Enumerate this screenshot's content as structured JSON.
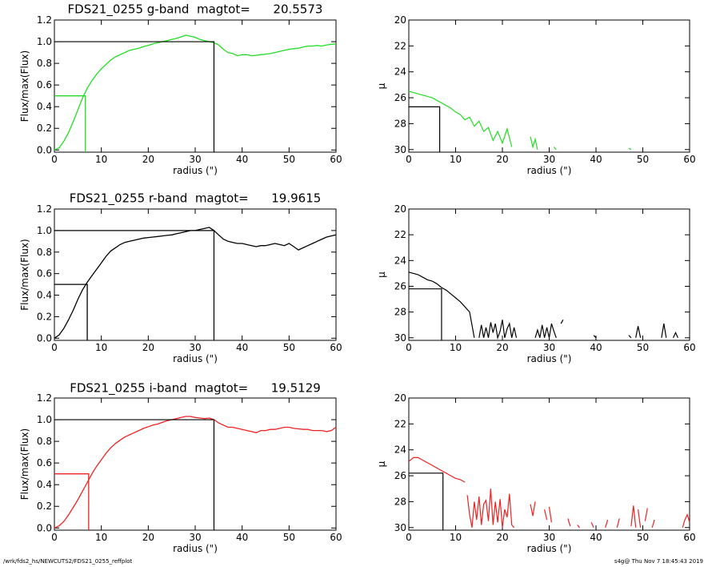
{
  "footer": {
    "left": "/wrk/fds2_hs/NEWCUTS2/FDS21_0255_reffplot",
    "right": "s4g@  Thu Nov  7 18:45:43 2019"
  },
  "chart_data": [
    {
      "type": "line",
      "band": "g",
      "title": "FDS21_0255 g-band  magtot=      20.5573",
      "xlabel": "radius (\")",
      "ylabel": "Flux/max(Flux)",
      "xlim": [
        0,
        60
      ],
      "ylim": [
        -0.02,
        1.2
      ],
      "xticks": [
        "0",
        "10",
        "20",
        "30",
        "40",
        "50",
        "60"
      ],
      "yticks": [
        "0.0",
        "0.2",
        "0.4",
        "0.6",
        "0.8",
        "1.0",
        "1.2"
      ],
      "color": "#22dd22",
      "series": [
        {
          "x": [
            0,
            1,
            2,
            3,
            4,
            5,
            6,
            7,
            8,
            9,
            10,
            11,
            12,
            13,
            14,
            15,
            16,
            17,
            18,
            19,
            20,
            21,
            22,
            23,
            24,
            25,
            26,
            27,
            28,
            29,
            30,
            31,
            32,
            33,
            34,
            35,
            36,
            37,
            38,
            39,
            40,
            41,
            42,
            43,
            44,
            45,
            46,
            47,
            48,
            49,
            50,
            51,
            52,
            53,
            54,
            55,
            56,
            57,
            58,
            59,
            60
          ],
          "y": [
            0,
            0.02,
            0.08,
            0.16,
            0.26,
            0.37,
            0.48,
            0.57,
            0.64,
            0.7,
            0.75,
            0.79,
            0.83,
            0.86,
            0.88,
            0.9,
            0.92,
            0.93,
            0.94,
            0.955,
            0.965,
            0.98,
            0.99,
            1.0,
            1.01,
            1.02,
            1.03,
            1.045,
            1.06,
            1.05,
            1.04,
            1.02,
            1.01,
            1.0,
            0.99,
            0.97,
            0.93,
            0.9,
            0.89,
            0.87,
            0.88,
            0.88,
            0.87,
            0.875,
            0.88,
            0.885,
            0.89,
            0.9,
            0.91,
            0.92,
            0.93,
            0.935,
            0.94,
            0.95,
            0.96,
            0.96,
            0.965,
            0.96,
            0.97,
            0.975,
            0.98
          ]
        }
      ],
      "half_radius": 6.6,
      "total_radius": 34,
      "mu": {
        "ylabel": "μ",
        "xlim": [
          0,
          60
        ],
        "ylim": [
          30.2,
          20
        ],
        "yticks": [
          "20",
          "22",
          "24",
          "26",
          "28",
          "30"
        ],
        "mu_eff": 26.7,
        "segments": [
          {
            "x": [
              0,
              1,
              2,
              3,
              4,
              5,
              6,
              7,
              8,
              9,
              10,
              11,
              12,
              13,
              14,
              15,
              16,
              17,
              18,
              19,
              20,
              21,
              22
            ],
            "y": [
              25.5,
              25.6,
              25.7,
              25.8,
              25.9,
              26.0,
              26.2,
              26.4,
              26.6,
              26.8,
              27.1,
              27.3,
              27.7,
              27.5,
              28.2,
              27.8,
              28.6,
              28.3,
              29.3,
              28.6,
              29.5,
              28.4,
              29.8
            ]
          },
          {
            "x": [
              26,
              26.5,
              27,
              27.5
            ],
            "y": [
              29.0,
              29.8,
              29.2,
              30.0
            ]
          },
          {
            "x": [
              31,
              31.5
            ],
            "y": [
              29.8,
              30.0
            ]
          },
          {
            "x": [
              47,
              47.5
            ],
            "y": [
              29.9,
              30.0
            ]
          }
        ]
      }
    },
    {
      "type": "line",
      "band": "r",
      "title": "FDS21_0255 r-band  magtot=      19.9615",
      "xlabel": "radius (\")",
      "ylabel": "Flux/max(Flux)",
      "xlim": [
        0,
        60
      ],
      "ylim": [
        -0.02,
        1.2
      ],
      "xticks": [
        "0",
        "10",
        "20",
        "30",
        "40",
        "50",
        "60"
      ],
      "yticks": [
        "0.0",
        "0.2",
        "0.4",
        "0.6",
        "0.8",
        "1.0",
        "1.2"
      ],
      "color": "#000000",
      "series": [
        {
          "x": [
            0,
            1,
            2,
            3,
            4,
            5,
            6,
            7,
            8,
            9,
            10,
            11,
            12,
            13,
            14,
            15,
            16,
            17,
            18,
            19,
            20,
            21,
            22,
            23,
            24,
            25,
            26,
            27,
            28,
            29,
            30,
            31,
            32,
            33,
            34,
            35,
            36,
            37,
            38,
            39,
            40,
            41,
            42,
            43,
            44,
            45,
            46,
            47,
            48,
            49,
            50,
            51,
            52,
            53,
            54,
            55,
            56,
            57,
            58,
            59,
            60
          ],
          "y": [
            0,
            0.03,
            0.09,
            0.17,
            0.26,
            0.36,
            0.45,
            0.52,
            0.58,
            0.64,
            0.7,
            0.76,
            0.81,
            0.84,
            0.87,
            0.89,
            0.9,
            0.91,
            0.92,
            0.93,
            0.935,
            0.94,
            0.945,
            0.95,
            0.955,
            0.96,
            0.97,
            0.98,
            0.99,
            1.0,
            1.0,
            1.01,
            1.02,
            1.03,
            1.0,
            0.96,
            0.92,
            0.9,
            0.89,
            0.88,
            0.88,
            0.87,
            0.86,
            0.85,
            0.86,
            0.86,
            0.87,
            0.88,
            0.87,
            0.86,
            0.88,
            0.85,
            0.82,
            0.84,
            0.86,
            0.88,
            0.9,
            0.92,
            0.94,
            0.95,
            0.96
          ]
        }
      ],
      "half_radius": 7,
      "total_radius": 34,
      "mu": {
        "ylabel": "μ",
        "xlim": [
          0,
          60
        ],
        "ylim": [
          30.2,
          20
        ],
        "yticks": [
          "20",
          "22",
          "24",
          "26",
          "28",
          "30"
        ],
        "mu_eff": 26.2,
        "segments": [
          {
            "x": [
              0,
              1,
              2,
              3,
              4,
              5,
              6,
              7,
              8,
              9,
              10,
              11,
              12,
              13,
              14
            ],
            "y": [
              24.9,
              25.0,
              25.1,
              25.3,
              25.5,
              25.6,
              25.8,
              26.1,
              26.3,
              26.6,
              26.9,
              27.2,
              27.6,
              28.0,
              30.0
            ]
          },
          {
            "x": [
              15,
              15.5,
              16,
              16.5,
              17,
              17.5,
              18,
              18.5,
              19,
              19.5,
              20,
              20.5,
              21,
              21.5,
              22,
              22.5,
              23
            ],
            "y": [
              30.0,
              29.0,
              30.0,
              29.2,
              30.0,
              28.8,
              29.6,
              28.9,
              30.0,
              29.5,
              28.6,
              30.0,
              29.3,
              28.9,
              30.0,
              29.2,
              30.0
            ]
          },
          {
            "x": [
              27,
              27.5,
              28,
              28.5,
              29,
              29.5,
              30,
              30.5,
              31,
              31.5
            ],
            "y": [
              30.0,
              29.4,
              30.0,
              29.0,
              30.0,
              29.2,
              30.0,
              28.9,
              29.5,
              30.0
            ]
          },
          {
            "x": [
              32.5,
              33
            ],
            "y": [
              28.9,
              28.6
            ]
          },
          {
            "x": [
              39.5,
              40
            ],
            "y": [
              29.8,
              30.0
            ]
          },
          {
            "x": [
              47,
              47.5
            ],
            "y": [
              29.8,
              30.0
            ]
          },
          {
            "x": [
              48.5,
              49,
              49.5
            ],
            "y": [
              30.0,
              29.1,
              30.0
            ]
          },
          {
            "x": [
              54,
              54.5,
              55
            ],
            "y": [
              30.0,
              28.9,
              30.0
            ]
          },
          {
            "x": [
              56.5,
              57,
              57.5
            ],
            "y": [
              30.0,
              29.6,
              30.0
            ]
          }
        ]
      }
    },
    {
      "type": "line",
      "band": "i",
      "title": "FDS21_0255 i-band  magtot=      19.5129",
      "xlabel": "radius (\")",
      "ylabel": "Flux/max(Flux)",
      "xlim": [
        0,
        60
      ],
      "ylim": [
        -0.02,
        1.2
      ],
      "xticks": [
        "0",
        "10",
        "20",
        "30",
        "40",
        "50",
        "60"
      ],
      "yticks": [
        "0.0",
        "0.2",
        "0.4",
        "0.6",
        "0.8",
        "1.0",
        "1.2"
      ],
      "color": "#ee2222",
      "series": [
        {
          "x": [
            0,
            1,
            2,
            3,
            4,
            5,
            6,
            7,
            8,
            9,
            10,
            11,
            12,
            13,
            14,
            15,
            16,
            17,
            18,
            19,
            20,
            21,
            22,
            23,
            24,
            25,
            26,
            27,
            28,
            29,
            30,
            31,
            32,
            33,
            34,
            35,
            36,
            37,
            38,
            39,
            40,
            41,
            42,
            43,
            44,
            45,
            46,
            47,
            48,
            49,
            50,
            51,
            52,
            53,
            54,
            55,
            56,
            57,
            58,
            59,
            60
          ],
          "y": [
            0,
            0.02,
            0.06,
            0.12,
            0.19,
            0.26,
            0.34,
            0.42,
            0.5,
            0.57,
            0.63,
            0.69,
            0.74,
            0.78,
            0.81,
            0.84,
            0.86,
            0.88,
            0.9,
            0.92,
            0.935,
            0.95,
            0.96,
            0.975,
            0.99,
            1.0,
            1.01,
            1.02,
            1.03,
            1.03,
            1.02,
            1.015,
            1.01,
            1.015,
            1.0,
            0.97,
            0.95,
            0.93,
            0.93,
            0.92,
            0.91,
            0.9,
            0.89,
            0.88,
            0.9,
            0.9,
            0.91,
            0.91,
            0.92,
            0.93,
            0.93,
            0.92,
            0.915,
            0.91,
            0.91,
            0.9,
            0.9,
            0.9,
            0.89,
            0.9,
            0.93
          ]
        }
      ],
      "half_radius": 7.3,
      "total_radius": 34,
      "mu": {
        "ylabel": "μ",
        "xlim": [
          0,
          60
        ],
        "ylim": [
          30.2,
          20
        ],
        "yticks": [
          "20",
          "22",
          "24",
          "26",
          "28",
          "30"
        ],
        "mu_eff": 25.8,
        "segments": [
          {
            "x": [
              0,
              1,
              2,
              3,
              4,
              5,
              6,
              7,
              8,
              9,
              10,
              11,
              12
            ],
            "y": [
              24.9,
              24.6,
              24.6,
              24.8,
              25.0,
              25.2,
              25.4,
              25.6,
              25.8,
              26.0,
              26.2,
              26.3,
              26.5
            ]
          },
          {
            "x": [
              12.5,
              13,
              13.5,
              14,
              14.5,
              15,
              15.5,
              16,
              16.5,
              17,
              17.5,
              18,
              18.5,
              19,
              19.5,
              20,
              20.5,
              21,
              21.5,
              22,
              22.5
            ],
            "y": [
              27.5,
              29.0,
              30.0,
              28.0,
              29.4,
              27.6,
              29.8,
              28.2,
              27.9,
              29.5,
              27.0,
              29.8,
              28.0,
              29.6,
              27.8,
              30.0,
              28.6,
              29.2,
              27.4,
              29.8,
              30.0
            ]
          },
          {
            "x": [
              26,
              26.5,
              27
            ],
            "y": [
              28.2,
              29.1,
              28.0
            ]
          },
          {
            "x": [
              29,
              29.5
            ],
            "y": [
              28.6,
              29.4
            ]
          },
          {
            "x": [
              30,
              30.5
            ],
            "y": [
              28.4,
              29.6
            ]
          },
          {
            "x": [
              34,
              34.5
            ],
            "y": [
              29.3,
              29.9
            ]
          },
          {
            "x": [
              36,
              36.5
            ],
            "y": [
              29.8,
              30.0
            ]
          },
          {
            "x": [
              39,
              39.5
            ],
            "y": [
              29.6,
              30.0
            ]
          },
          {
            "x": [
              42,
              42.5
            ],
            "y": [
              30.0,
              29.4
            ]
          },
          {
            "x": [
              44.5,
              45
            ],
            "y": [
              30.0,
              29.3
            ]
          },
          {
            "x": [
              47.5,
              48,
              48.5
            ],
            "y": [
              29.9,
              28.3,
              30.0
            ]
          },
          {
            "x": [
              49,
              49.5
            ],
            "y": [
              28.6,
              30.0
            ]
          },
          {
            "x": [
              50.5,
              51
            ],
            "y": [
              29.5,
              28.5
            ]
          },
          {
            "x": [
              52,
              52.5
            ],
            "y": [
              30.0,
              29.4
            ]
          },
          {
            "x": [
              58.5,
              59,
              59.5,
              60
            ],
            "y": [
              30.0,
              29.4,
              29.0,
              29.6
            ]
          }
        ]
      }
    }
  ]
}
